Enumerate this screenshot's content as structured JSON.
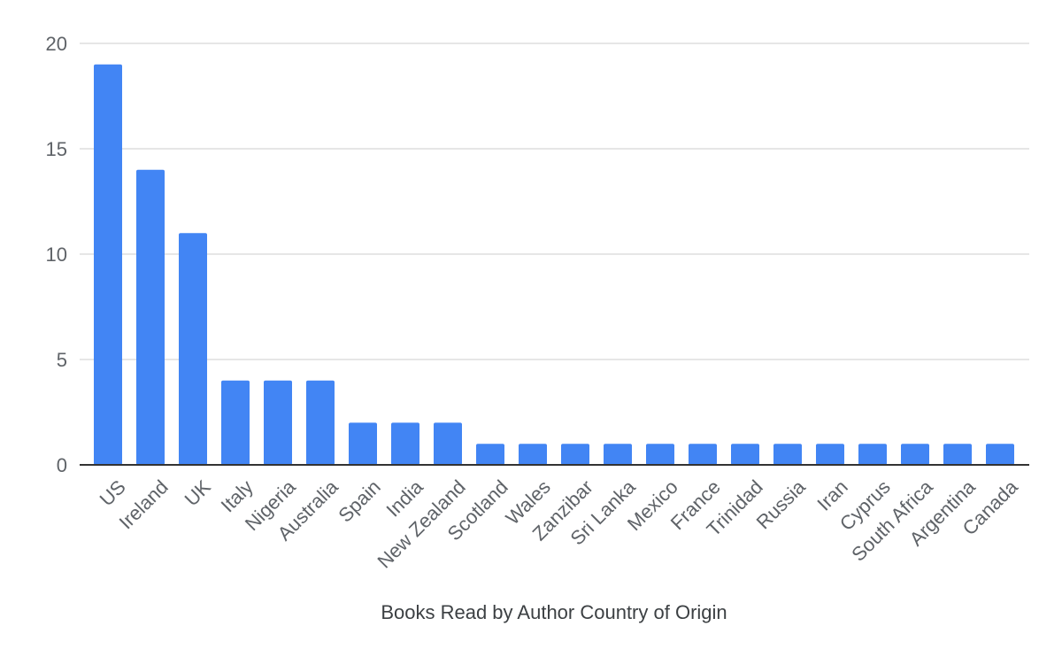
{
  "chart_data": {
    "type": "bar",
    "title": "",
    "xlabel": "Books Read by Author Country of Origin",
    "ylabel": "",
    "ylim": [
      0,
      20
    ],
    "yticks": [
      0,
      5,
      10,
      15,
      20
    ],
    "grid": true,
    "legend": "none",
    "bar_color": "#4285f4",
    "categories": [
      "US",
      "Ireland",
      "UK",
      "Italy",
      "Nigeria",
      "Australia",
      "Spain",
      "India",
      "New Zealand",
      "Scotland",
      "Wales",
      "Zanzibar",
      "Sri Lanka",
      "Mexico",
      "France",
      "Trinidad",
      "Russia",
      "Iran",
      "Cyprus",
      "South Africa",
      "Argentina",
      "Canada"
    ],
    "values": [
      19,
      14,
      11,
      4,
      4,
      4,
      2,
      2,
      2,
      1,
      1,
      1,
      1,
      1,
      1,
      1,
      1,
      1,
      1,
      1,
      1,
      1
    ]
  }
}
